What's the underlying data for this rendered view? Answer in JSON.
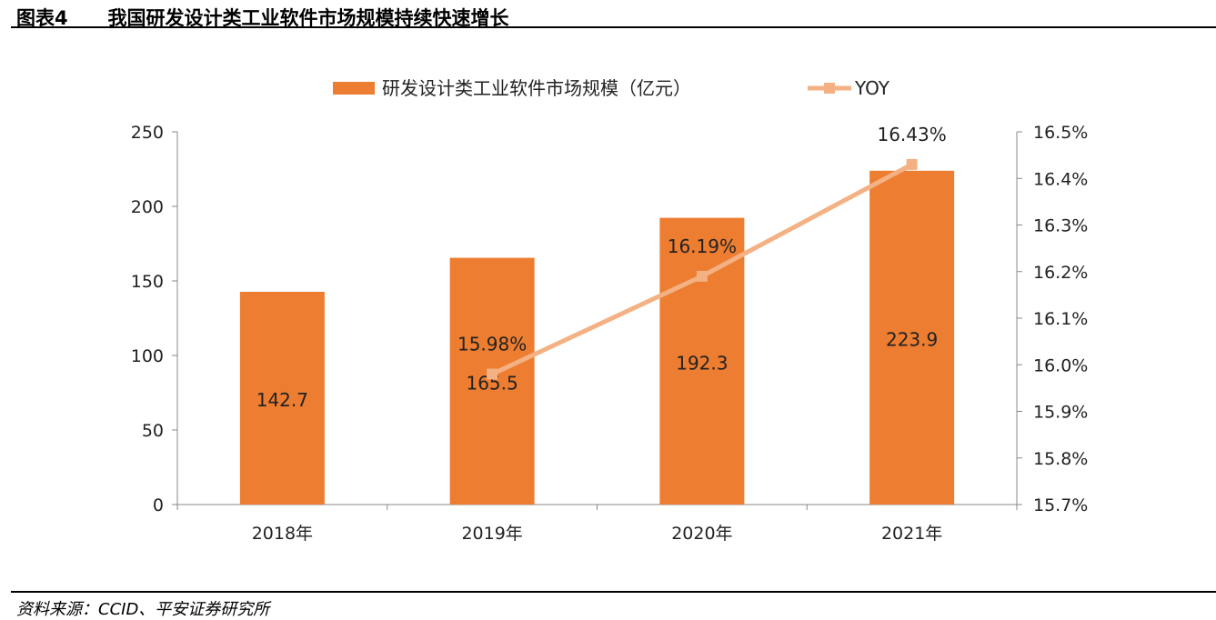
{
  "header": {
    "figure_label": "图表4",
    "title": "我国研发设计类工业软件市场规模持续快速增长"
  },
  "footer": {
    "source": "资料来源：CCID、平安证券研究所"
  },
  "colors": {
    "bar": "#ED7D31",
    "line": "#F4B183",
    "axis": "#888888"
  },
  "chart_data": {
    "type": "bar+line",
    "categories": [
      "2018年",
      "2019年",
      "2020年",
      "2021年"
    ],
    "series": [
      {
        "name": "研发设计类工业软件市场规模（亿元）",
        "type": "bar",
        "axis": "left",
        "values": [
          142.7,
          165.5,
          192.3,
          223.9
        ],
        "labels": [
          "142.7",
          "165.5",
          "192.3",
          "223.9"
        ]
      },
      {
        "name": "YOY",
        "type": "line",
        "axis": "right",
        "values": [
          null,
          15.98,
          16.19,
          16.43
        ],
        "labels": [
          "",
          "15.98%",
          "16.19%",
          "16.43%"
        ]
      }
    ],
    "y_left": {
      "range": [
        0,
        250
      ],
      "ticks": [
        "0",
        "50",
        "100",
        "150",
        "200",
        "250"
      ]
    },
    "y_right": {
      "range": [
        15.7,
        16.5
      ],
      "ticks": [
        "15.7%",
        "15.8%",
        "15.9%",
        "16.0%",
        "16.1%",
        "16.2%",
        "16.3%",
        "16.4%",
        "16.5%"
      ]
    },
    "legend": "top",
    "grid": false
  }
}
